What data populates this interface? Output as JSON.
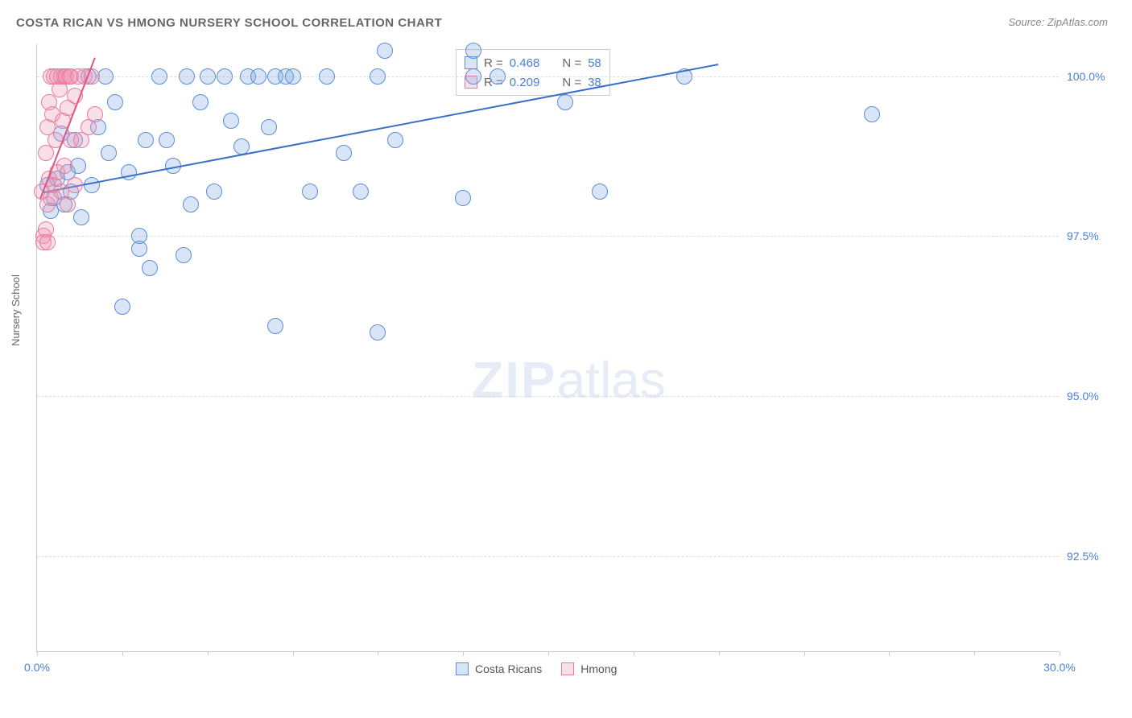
{
  "title": "COSTA RICAN VS HMONG NURSERY SCHOOL CORRELATION CHART",
  "source": "Source: ZipAtlas.com",
  "watermark_zip": "ZIP",
  "watermark_atlas": "atlas",
  "chart": {
    "type": "scatter",
    "ylabel": "Nursery School",
    "background_color": "#ffffff",
    "grid_color": "#dddddd",
    "axis_color": "#cccccc",
    "tick_label_color": "#4a7fd8",
    "title_color": "#666666",
    "title_fontsize": 15,
    "tick_fontsize": 14,
    "ylabel_fontsize": 13,
    "marker_radius": 10,
    "marker_stroke_width": 1.5,
    "marker_fill_opacity": 0.25,
    "xlim": [
      0,
      30
    ],
    "ylim": [
      91,
      100.5
    ],
    "xticks": [
      0,
      2.5,
      5,
      7.5,
      10,
      12.5,
      15,
      17.5,
      20,
      22.5,
      25,
      27.5,
      30
    ],
    "xtick_labels": {
      "0": "0.0%",
      "30": "30.0%"
    },
    "yticks": [
      92.5,
      95.0,
      97.5,
      100.0
    ],
    "ytick_labels": [
      "92.5%",
      "95.0%",
      "97.5%",
      "100.0%"
    ],
    "series": [
      {
        "name": "Costa Ricans",
        "color_stroke": "#5b8ed6",
        "color_fill": "rgba(130,170,225,0.3)",
        "R": "0.468",
        "N": "58",
        "trend": {
          "x1": 0.2,
          "y1": 98.2,
          "x2": 20.0,
          "y2": 100.2,
          "color": "#3a6fc8",
          "width": 2
        },
        "points": [
          [
            0.3,
            98.3
          ],
          [
            0.5,
            98.1
          ],
          [
            0.6,
            98.4
          ],
          [
            0.8,
            98.0
          ],
          [
            0.9,
            98.5
          ],
          [
            0.4,
            97.9
          ],
          [
            0.7,
            99.1
          ],
          [
            1.0,
            98.2
          ],
          [
            1.2,
            98.6
          ],
          [
            1.1,
            99.0
          ],
          [
            1.3,
            97.8
          ],
          [
            1.5,
            100.0
          ],
          [
            1.6,
            98.3
          ],
          [
            1.8,
            99.2
          ],
          [
            2.0,
            100.0
          ],
          [
            2.1,
            98.8
          ],
          [
            2.3,
            99.6
          ],
          [
            2.5,
            96.4
          ],
          [
            2.7,
            98.5
          ],
          [
            3.0,
            97.5
          ],
          [
            3.0,
            97.3
          ],
          [
            3.2,
            99.0
          ],
          [
            3.3,
            97.0
          ],
          [
            3.6,
            100.0
          ],
          [
            3.8,
            99.0
          ],
          [
            4.0,
            98.6
          ],
          [
            4.3,
            97.2
          ],
          [
            4.5,
            98.0
          ],
          [
            4.8,
            99.6
          ],
          [
            5.0,
            100.0
          ],
          [
            5.2,
            98.2
          ],
          [
            5.5,
            100.0
          ],
          [
            5.7,
            99.3
          ],
          [
            6.0,
            98.9
          ],
          [
            6.2,
            100.0
          ],
          [
            6.5,
            100.0
          ],
          [
            6.8,
            99.2
          ],
          [
            7.0,
            100.0
          ],
          [
            7.0,
            96.1
          ],
          [
            7.3,
            100.0
          ],
          [
            7.5,
            100.0
          ],
          [
            8.0,
            98.2
          ],
          [
            8.5,
            100.0
          ],
          [
            9.0,
            98.8
          ],
          [
            9.5,
            98.2
          ],
          [
            10.0,
            100.0
          ],
          [
            10.0,
            96.0
          ],
          [
            10.5,
            99.0
          ],
          [
            12.5,
            98.1
          ],
          [
            12.8,
            100.0
          ],
          [
            12.8,
            100.4
          ],
          [
            13.5,
            100.0
          ],
          [
            15.5,
            99.6
          ],
          [
            16.5,
            98.2
          ],
          [
            19.0,
            100.0
          ],
          [
            24.5,
            99.4
          ],
          [
            10.2,
            100.4
          ],
          [
            4.4,
            100.0
          ]
        ]
      },
      {
        "name": "Hmong",
        "color_stroke": "#e87ba0",
        "color_fill": "rgba(240,150,180,0.3)",
        "R": "0.209",
        "N": "38",
        "trend": {
          "x1": 0.1,
          "y1": 98.1,
          "x2": 1.7,
          "y2": 100.3,
          "color": "#e05585",
          "width": 2
        },
        "points": [
          [
            0.15,
            98.2
          ],
          [
            0.2,
            97.5
          ],
          [
            0.25,
            98.8
          ],
          [
            0.25,
            97.6
          ],
          [
            0.3,
            99.2
          ],
          [
            0.3,
            98.0
          ],
          [
            0.35,
            99.6
          ],
          [
            0.35,
            98.4
          ],
          [
            0.4,
            100.0
          ],
          [
            0.4,
            98.1
          ],
          [
            0.45,
            99.4
          ],
          [
            0.5,
            100.0
          ],
          [
            0.5,
            98.3
          ],
          [
            0.55,
            99.0
          ],
          [
            0.6,
            100.0
          ],
          [
            0.6,
            98.5
          ],
          [
            0.65,
            99.8
          ],
          [
            0.7,
            100.0
          ],
          [
            0.7,
            98.2
          ],
          [
            0.75,
            99.3
          ],
          [
            0.8,
            100.0
          ],
          [
            0.8,
            98.6
          ],
          [
            0.85,
            100.0
          ],
          [
            0.9,
            99.5
          ],
          [
            0.9,
            98.0
          ],
          [
            0.95,
            100.0
          ],
          [
            1.0,
            99.0
          ],
          [
            1.0,
            100.0
          ],
          [
            1.1,
            99.7
          ],
          [
            1.1,
            98.3
          ],
          [
            1.2,
            100.0
          ],
          [
            1.3,
            99.0
          ],
          [
            1.4,
            100.0
          ],
          [
            1.5,
            99.2
          ],
          [
            1.6,
            100.0
          ],
          [
            1.7,
            99.4
          ],
          [
            0.2,
            97.4
          ],
          [
            0.3,
            97.4
          ]
        ]
      }
    ],
    "legend_top": {
      "r_prefix": "R =",
      "n_prefix": "N ="
    },
    "legend_bottom_labels": [
      "Costa Ricans",
      "Hmong"
    ]
  }
}
